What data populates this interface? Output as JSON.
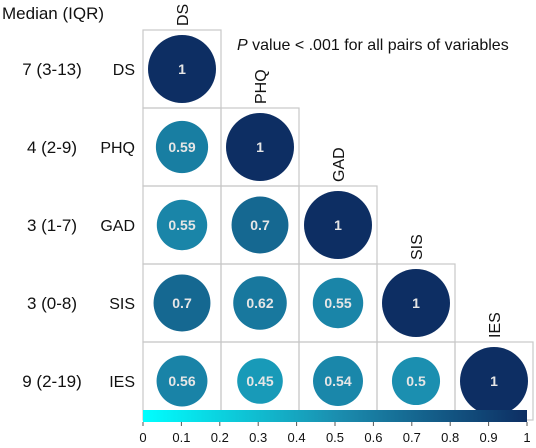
{
  "chart_data": {
    "type": "heatmap",
    "subtype": "correlation-matrix-lower-triangle",
    "header_label": "Median (IQR)",
    "annotation_italic": "P",
    "annotation_rest": " value < .001 for all pairs of variables",
    "variables": [
      "DS",
      "PHQ",
      "GAD",
      "SIS",
      "IES"
    ],
    "medians": [
      "7 (3-13)",
      "4 (2-9)",
      "3 (1-7)",
      "3 (0-8)",
      "9 (2-19)"
    ],
    "matrix": [
      [
        1
      ],
      [
        0.59,
        1
      ],
      [
        0.55,
        0.7,
        1
      ],
      [
        0.7,
        0.62,
        0.55,
        1
      ],
      [
        0.56,
        0.45,
        0.54,
        0.5,
        1
      ]
    ],
    "cell_labels": [
      [
        "1"
      ],
      [
        "0.59",
        "1"
      ],
      [
        "0.55",
        "0.7",
        "1"
      ],
      [
        "0.7",
        "0.62",
        "0.55",
        "1"
      ],
      [
        "0.56",
        "0.45",
        "0.54",
        "0.5",
        "1"
      ]
    ],
    "colorbar": {
      "range": [
        0,
        1
      ],
      "ticks": [
        "0",
        "0.1",
        "0.2",
        "0.3",
        "0.4",
        "0.5",
        "0.6",
        "0.7",
        "0.8",
        "0.9",
        "1"
      ],
      "color_low": "#00ffff",
      "color_mid": "#1b8fb0",
      "color_high": "#0d2e63"
    },
    "value_label_color": "#e6e6e6",
    "grid": true
  }
}
